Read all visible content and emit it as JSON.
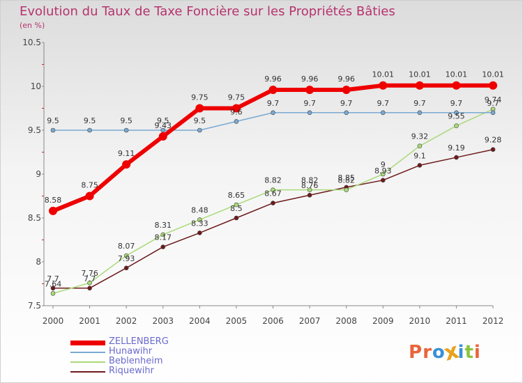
{
  "header": {
    "title": "Evolution du Taux de Taxe Foncière sur les Propriétés Bâties",
    "unit": "(en %)"
  },
  "brand": {
    "text": "Proxiti",
    "colors": [
      "#e9643b",
      "#e9643b",
      "#3b8fd6",
      "#e9a21d",
      "#3b8fd6",
      "#8ac43e",
      "#e9643b"
    ]
  },
  "chart_data": {
    "type": "line",
    "x": [
      "2000",
      "2001",
      "2002",
      "2003",
      "2004",
      "2005",
      "2006",
      "2007",
      "2008",
      "2009",
      "2010",
      "2011",
      "2012"
    ],
    "ylim": [
      7.5,
      10.5
    ],
    "yticks": [
      "7.5",
      "8",
      "8.5",
      "9",
      "9.5",
      "10",
      "10.5"
    ],
    "grid": false,
    "legend_position": "bottom-left",
    "series": [
      {
        "name": "ZELLENBERG",
        "color": "#ee0000",
        "values": [
          8.58,
          8.75,
          9.11,
          9.43,
          9.75,
          9.75,
          9.96,
          9.96,
          9.96,
          10.01,
          10.01,
          10.01,
          10.01
        ],
        "labels": [
          "8.58",
          "8.75",
          "9.11",
          "9.43",
          "9.75",
          "9.75",
          "9.96",
          "9.96",
          "9.96",
          "10.01",
          "10.01",
          "10.01",
          "10.01"
        ]
      },
      {
        "name": "Hunawihr",
        "color": "#7aa9d2",
        "values": [
          9.5,
          9.5,
          9.5,
          9.5,
          9.5,
          9.6,
          9.7,
          9.7,
          9.7,
          9.7,
          9.7,
          9.7,
          9.7
        ],
        "labels": [
          "9.5",
          "9.5",
          "9.5",
          "9.5",
          "9.5",
          "9.6",
          "9.7",
          "9.7",
          "9.7",
          "9.7",
          "9.7",
          "9.7",
          "9.7"
        ]
      },
      {
        "name": "Beblenheim",
        "color": "#a9da79",
        "values": [
          7.64,
          7.76,
          8.07,
          8.31,
          8.48,
          8.65,
          8.82,
          8.82,
          8.82,
          9.0,
          9.32,
          9.55,
          9.74
        ],
        "labels": [
          "7.64",
          "7.76",
          "8.07",
          "8.31",
          "8.48",
          "8.65",
          "8.82",
          "8.82",
          "8.82",
          "9",
          "9.32",
          "9.55",
          "9.74"
        ]
      },
      {
        "name": "Riquewihr",
        "color": "#6e1a1a",
        "values": [
          7.7,
          7.7,
          7.93,
          8.17,
          8.33,
          8.5,
          8.67,
          8.76,
          8.85,
          8.93,
          9.1,
          9.19,
          9.28
        ],
        "labels": [
          "7.7",
          "7.7",
          "7.93",
          "8.17",
          "8.33",
          "8.5",
          "8.67",
          "8.76",
          "8.85",
          "8.93",
          "9.1",
          "9.19",
          "9.28"
        ]
      }
    ]
  }
}
